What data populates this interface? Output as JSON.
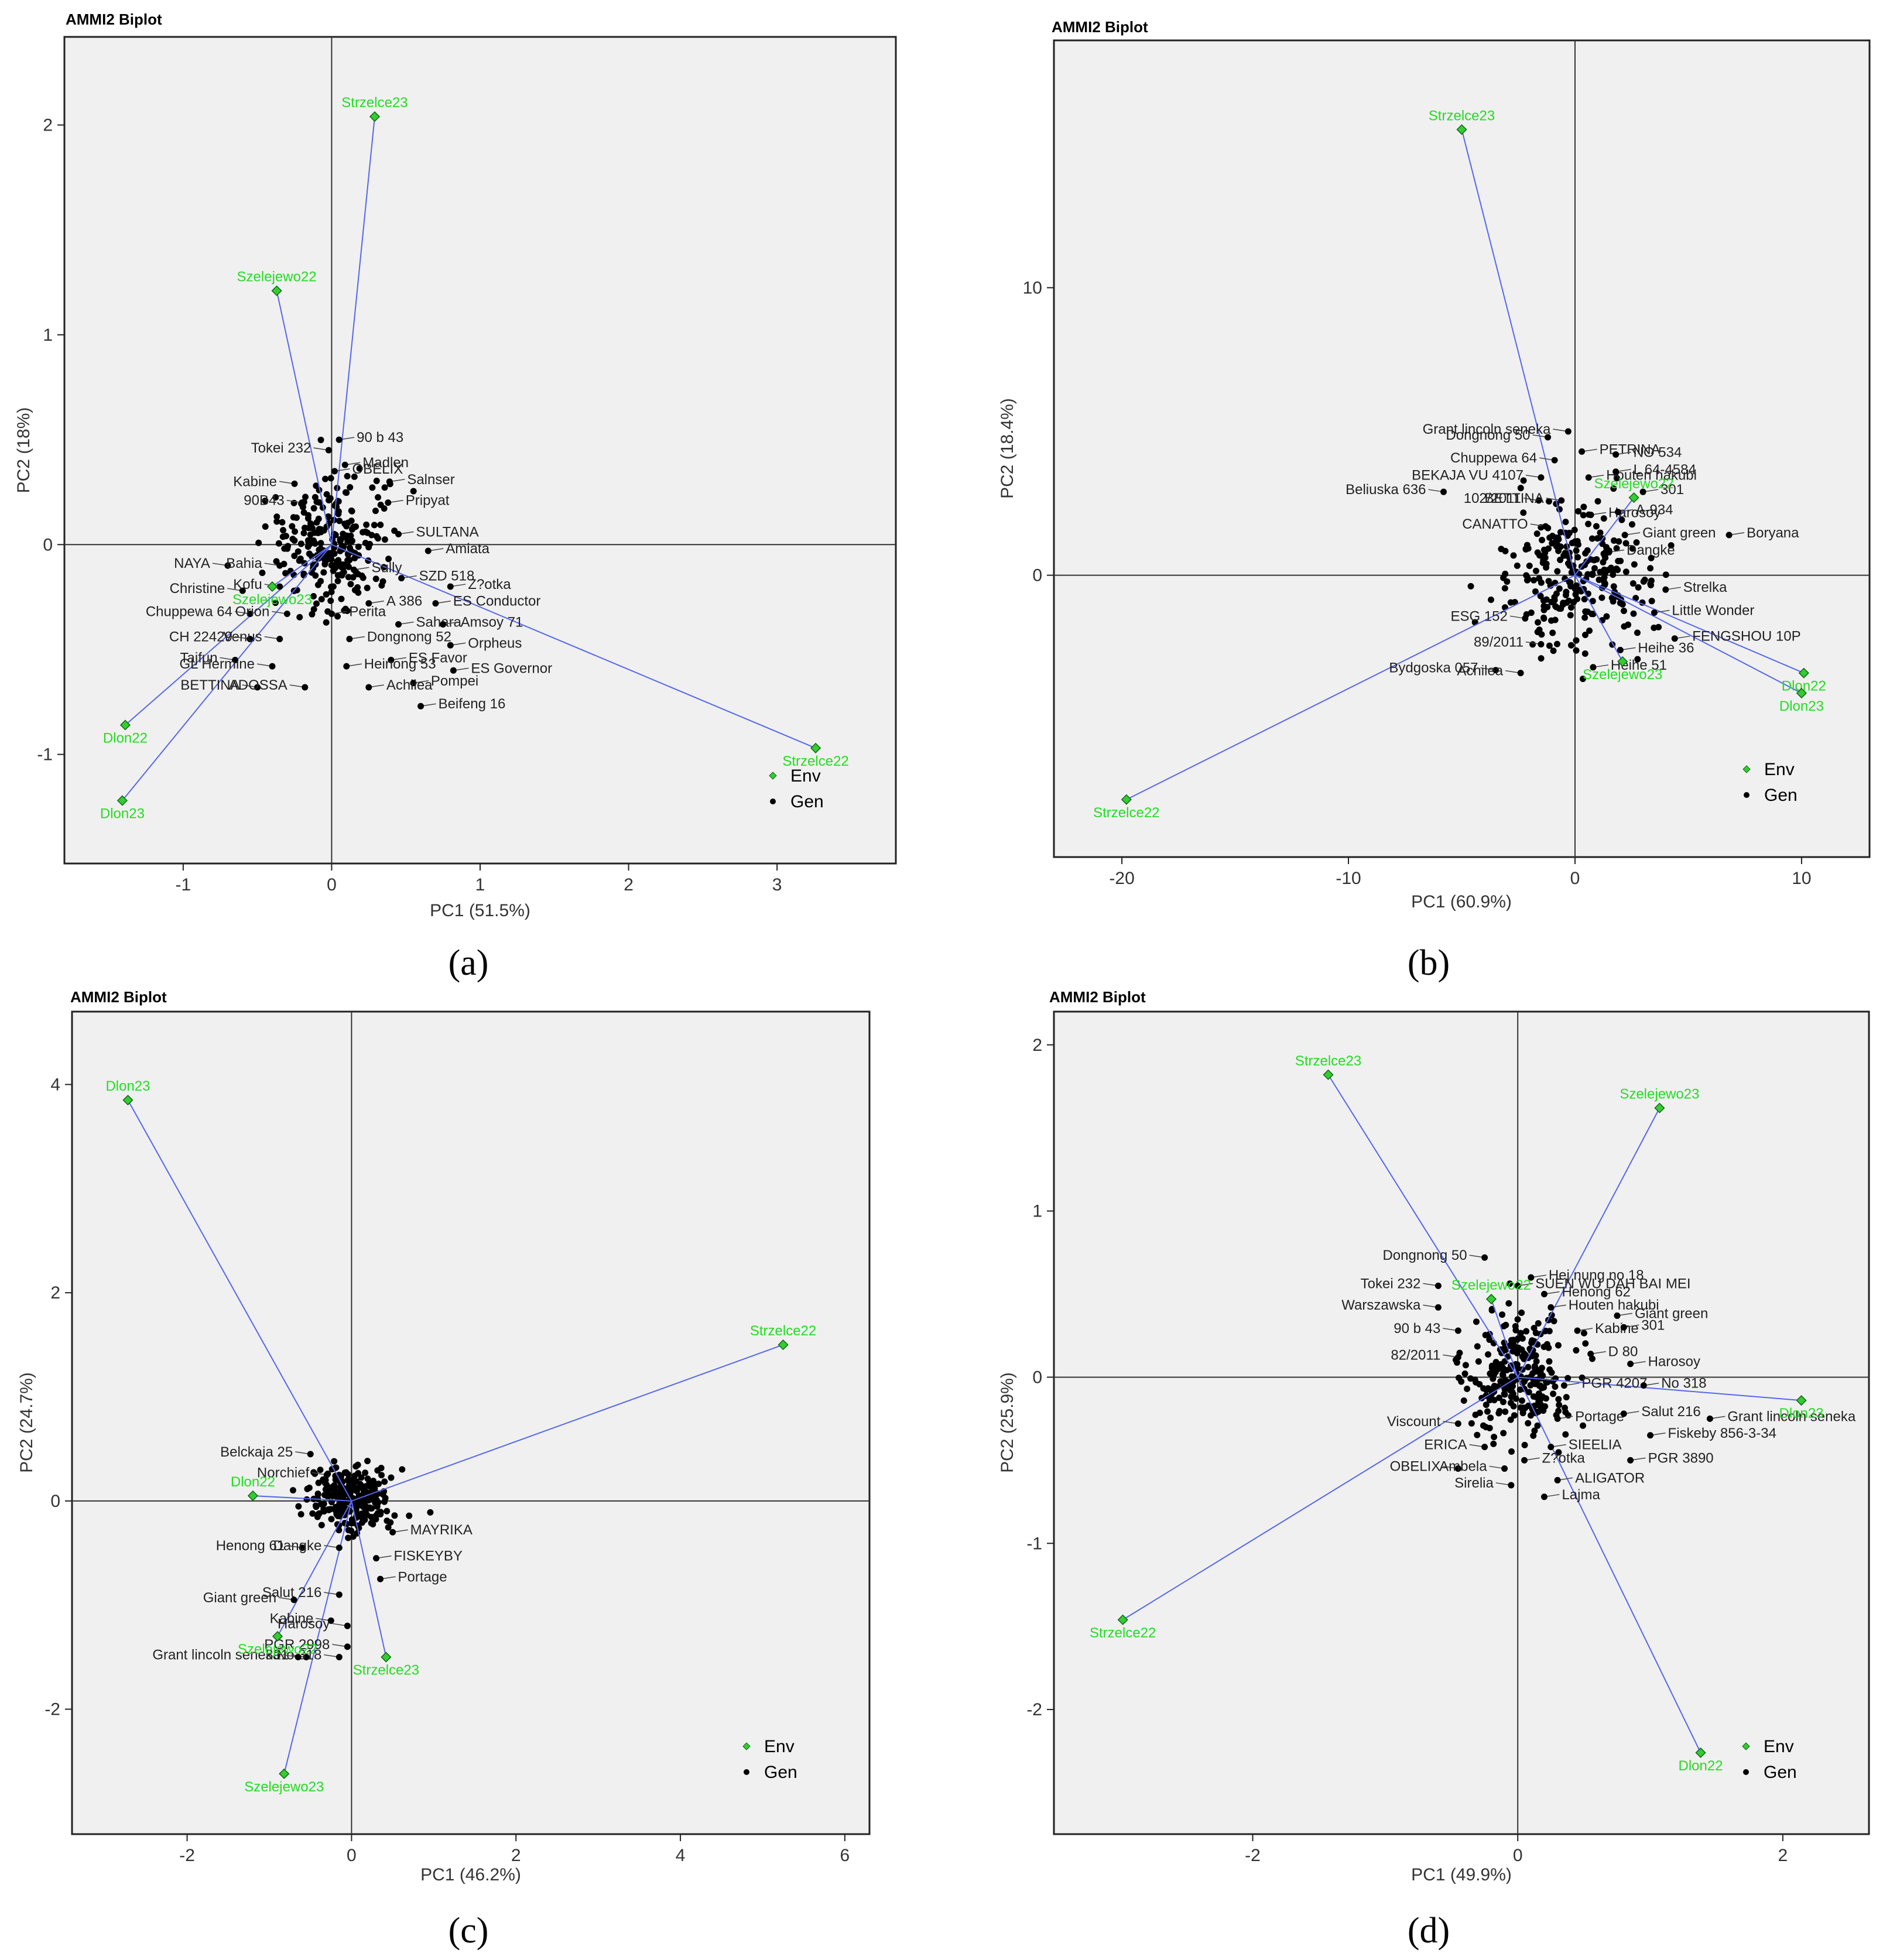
{
  "figure": {
    "panel_labels": [
      "(a)",
      "(b)",
      "(c)",
      "(d)"
    ],
    "colors": {
      "env": "#33cc33",
      "env_label": "#22dd22",
      "vector": "#5566ee",
      "gen": "#000000",
      "plot_bg": "#f0f0f0",
      "axis": "#222222"
    }
  },
  "chart_data": [
    {
      "id": "a",
      "type": "scatter",
      "title": "AMMI2 Biplot",
      "xlabel": "PC1 (51.5%)",
      "ylabel": "PC2 (18%)",
      "xlim": [
        -1.8,
        3.8
      ],
      "ylim": [
        -1.52,
        2.42
      ],
      "xticks": [
        -1,
        0,
        1,
        2,
        3
      ],
      "yticks": [
        -1,
        0,
        1,
        2
      ],
      "legend": {
        "position": "bottom-right",
        "entries": [
          "Env",
          "Gen"
        ]
      },
      "env": [
        {
          "name": "Strzelce23",
          "x": 0.29,
          "y": 2.04
        },
        {
          "name": "Szelejewo22",
          "x": -0.37,
          "y": 1.21
        },
        {
          "name": "Strzelce22",
          "x": 3.26,
          "y": -0.97
        },
        {
          "name": "Dlon22",
          "x": -1.39,
          "y": -0.86
        },
        {
          "name": "Dlon23",
          "x": -1.41,
          "y": -1.22
        },
        {
          "name": "Szelejewo23",
          "x": -0.4,
          "y": -0.2
        }
      ],
      "gen_labels": [
        {
          "name": "Tokei 232",
          "x": -0.02,
          "y": 0.45
        },
        {
          "name": "90 b 43",
          "x": 0.05,
          "y": 0.5
        },
        {
          "name": "OBELIX",
          "x": 0.02,
          "y": 0.35
        },
        {
          "name": "Madlen",
          "x": 0.09,
          "y": 0.38
        },
        {
          "name": "Kabine",
          "x": -0.25,
          "y": 0.29
        },
        {
          "name": "Salnser",
          "x": 0.39,
          "y": 0.3
        },
        {
          "name": "90B43",
          "x": -0.2,
          "y": 0.2
        },
        {
          "name": "Pripyat",
          "x": 0.38,
          "y": 0.2
        },
        {
          "name": "SULTANA",
          "x": 0.45,
          "y": 0.05
        },
        {
          "name": "Amiata",
          "x": 0.65,
          "y": -0.03
        },
        {
          "name": "NAYA",
          "x": -0.7,
          "y": -0.1
        },
        {
          "name": "Bahia",
          "x": -0.35,
          "y": -0.1
        },
        {
          "name": "Sully",
          "x": 0.15,
          "y": -0.12
        },
        {
          "name": "SZD 518",
          "x": 0.47,
          "y": -0.16
        },
        {
          "name": "Z?otka",
          "x": 0.8,
          "y": -0.2
        },
        {
          "name": "Christine",
          "x": -0.6,
          "y": -0.22
        },
        {
          "name": "Kofu",
          "x": -0.35,
          "y": -0.2
        },
        {
          "name": "A 386",
          "x": 0.25,
          "y": -0.28
        },
        {
          "name": "ES Conductor",
          "x": 0.7,
          "y": -0.28
        },
        {
          "name": "Chuppewa 64",
          "x": -0.55,
          "y": -0.33
        },
        {
          "name": "Orion",
          "x": -0.3,
          "y": -0.33
        },
        {
          "name": "Perita",
          "x": 0.0,
          "y": -0.33
        },
        {
          "name": "Sahara",
          "x": 0.45,
          "y": -0.38
        },
        {
          "name": "Amsoy 71",
          "x": 0.75,
          "y": -0.38
        },
        {
          "name": "CH 22429",
          "x": -0.55,
          "y": -0.45
        },
        {
          "name": "Venus",
          "x": -0.35,
          "y": -0.45
        },
        {
          "name": "Dongnong 52",
          "x": 0.12,
          "y": -0.45
        },
        {
          "name": "Orpheus",
          "x": 0.8,
          "y": -0.48
        },
        {
          "name": "Tajfun",
          "x": -0.65,
          "y": -0.55
        },
        {
          "name": "ES Favor",
          "x": 0.4,
          "y": -0.55
        },
        {
          "name": "GL Hermine",
          "x": -0.4,
          "y": -0.58
        },
        {
          "name": "Heinong 53",
          "x": 0.1,
          "y": -0.58
        },
        {
          "name": "ES Governor",
          "x": 0.82,
          "y": -0.6
        },
        {
          "name": "Pompei",
          "x": 0.55,
          "y": -0.66
        },
        {
          "name": "BETTINA",
          "x": -0.5,
          "y": -0.68
        },
        {
          "name": "ADOSSA",
          "x": -0.18,
          "y": -0.68
        },
        {
          "name": "Achilea",
          "x": 0.25,
          "y": -0.68
        },
        {
          "name": "Beifeng 16",
          "x": 0.6,
          "y": -0.77
        }
      ]
    },
    {
      "id": "b",
      "type": "scatter",
      "title": "AMMI2 Biplot",
      "xlabel": "PC1 (60.9%)",
      "ylabel": "PC2 (18.4%)",
      "xlim": [
        -23,
        13
      ],
      "ylim": [
        -9.8,
        18.6
      ],
      "xticks": [
        -20,
        -10,
        0,
        10
      ],
      "yticks": [
        0,
        10
      ],
      "legend": {
        "position": "bottom-right",
        "entries": [
          "Env",
          "Gen"
        ]
      },
      "env": [
        {
          "name": "Strzelce23",
          "x": -5.0,
          "y": 15.5
        },
        {
          "name": "Szelejewo22",
          "x": 2.6,
          "y": 2.7
        },
        {
          "name": "Dlon22",
          "x": 10.1,
          "y": -3.4
        },
        {
          "name": "Dlon23",
          "x": 10.0,
          "y": -4.1
        },
        {
          "name": "Szelejewo23",
          "x": 2.1,
          "y": -3.0
        },
        {
          "name": "Strzelce22",
          "x": -19.8,
          "y": -7.8
        }
      ],
      "gen_labels": [
        {
          "name": "Dongnong 50",
          "x": -1.2,
          "y": 4.8
        },
        {
          "name": "Grant lincoln seneka",
          "x": -0.3,
          "y": 5.0
        },
        {
          "name": "Chuppewa 64",
          "x": -0.9,
          "y": 4.0
        },
        {
          "name": "PETRINA",
          "x": 0.3,
          "y": 4.3
        },
        {
          "name": "NO 534",
          "x": 1.8,
          "y": 4.2
        },
        {
          "name": "BEKAJA VU 4107",
          "x": -1.5,
          "y": 3.4
        },
        {
          "name": "Houten hakubi",
          "x": 0.6,
          "y": 3.4
        },
        {
          "name": "L 64-4584",
          "x": 1.8,
          "y": 3.6
        },
        {
          "name": "301",
          "x": 3.0,
          "y": 2.9
        },
        {
          "name": "Beliuska 636",
          "x": -5.8,
          "y": 2.9
        },
        {
          "name": "102/2011",
          "x": -1.6,
          "y": 2.6
        },
        {
          "name": "BETTINA",
          "x": -0.6,
          "y": 2.6
        },
        {
          "name": "Harosoy",
          "x": 0.7,
          "y": 2.1
        },
        {
          "name": "A-934",
          "x": 1.9,
          "y": 2.2
        },
        {
          "name": "CANATTO",
          "x": -1.3,
          "y": 1.7
        },
        {
          "name": "Giant green",
          "x": 2.2,
          "y": 1.4
        },
        {
          "name": "Boryana",
          "x": 6.8,
          "y": 1.4
        },
        {
          "name": "Dangke",
          "x": 1.5,
          "y": 0.8
        },
        {
          "name": "Strelka",
          "x": 4.0,
          "y": -0.5
        },
        {
          "name": "Little Wonder",
          "x": 3.5,
          "y": -1.3
        },
        {
          "name": "ESG 152",
          "x": -2.2,
          "y": -1.5
        },
        {
          "name": "FENGSHOU 10P",
          "x": 4.4,
          "y": -2.2
        },
        {
          "name": "89/2011",
          "x": -1.5,
          "y": -2.4
        },
        {
          "name": "Heihe 36",
          "x": 2.0,
          "y": -2.6
        },
        {
          "name": "Bydgoska 057",
          "x": -3.5,
          "y": -3.3
        },
        {
          "name": "Heihe 51",
          "x": 0.8,
          "y": -3.2
        },
        {
          "name": "Achilea",
          "x": -2.4,
          "y": -3.4
        }
      ]
    },
    {
      "id": "c",
      "type": "scatter",
      "title": "AMMI2 Biplot",
      "xlabel": "PC1 (46.2%)",
      "ylabel": "PC2 (24.7%)",
      "xlim": [
        -3.4,
        6.3
      ],
      "ylim": [
        -3.2,
        4.7
      ],
      "xticks": [
        -2,
        0,
        2,
        4,
        6
      ],
      "yticks": [
        -2,
        0,
        2,
        4
      ],
      "legend": {
        "position": "bottom-right",
        "entries": [
          "Env",
          "Gen"
        ]
      },
      "env": [
        {
          "name": "Dlon23",
          "x": -2.72,
          "y": 3.85
        },
        {
          "name": "Strzelce22",
          "x": 5.25,
          "y": 1.5
        },
        {
          "name": "Dlon22",
          "x": -1.2,
          "y": 0.05
        },
        {
          "name": "Szelejewo22",
          "x": -0.9,
          "y": -1.3
        },
        {
          "name": "Strzelce23",
          "x": 0.42,
          "y": -1.5
        },
        {
          "name": "Szelejewo23",
          "x": -0.82,
          "y": -2.62
        }
      ],
      "gen_labels": [
        {
          "name": "Norchief",
          "x": -0.3,
          "y": 0.25
        },
        {
          "name": "Belckaja 25",
          "x": -0.5,
          "y": 0.45
        },
        {
          "name": "MAYRIKA",
          "x": 0.5,
          "y": -0.3
        },
        {
          "name": "Henong 61",
          "x": -0.6,
          "y": -0.45
        },
        {
          "name": "Dangke",
          "x": -0.15,
          "y": -0.45
        },
        {
          "name": "FISKEYBY",
          "x": 0.3,
          "y": -0.55
        },
        {
          "name": "Portage",
          "x": 0.35,
          "y": -0.75
        },
        {
          "name": "Giant green",
          "x": -0.7,
          "y": -0.95
        },
        {
          "name": "Salut 216",
          "x": -0.15,
          "y": -0.9
        },
        {
          "name": "Kabine",
          "x": -0.25,
          "y": -1.15
        },
        {
          "name": "Harosoy",
          "x": -0.05,
          "y": -1.2
        },
        {
          "name": "PGR 2998",
          "x": -0.05,
          "y": -1.4
        },
        {
          "name": "301",
          "x": -0.55,
          "y": -1.5
        },
        {
          "name": "No 318",
          "x": -0.15,
          "y": -1.5
        },
        {
          "name": "Grant lincoln seneka",
          "x": -0.65,
          "y": -1.5
        }
      ]
    },
    {
      "id": "d",
      "type": "scatter",
      "title": "AMMI2 Biplot",
      "xlabel": "PC1 (49.9%)",
      "ylabel": "PC2 (25.9%)",
      "xlim": [
        -3.5,
        2.65
      ],
      "ylim": [
        -2.75,
        2.2
      ],
      "xticks": [
        -2,
        0,
        2
      ],
      "yticks": [
        -2,
        -1,
        0,
        1,
        2
      ],
      "legend": {
        "position": "bottom-right",
        "entries": [
          "Env",
          "Gen"
        ]
      },
      "env": [
        {
          "name": "Strzelce23",
          "x": -1.43,
          "y": 1.82
        },
        {
          "name": "Szelejewo23",
          "x": 1.07,
          "y": 1.62
        },
        {
          "name": "Szelejewo22",
          "x": -0.2,
          "y": 0.47
        },
        {
          "name": "Dlon23",
          "x": 2.14,
          "y": -0.14
        },
        {
          "name": "Strzelce22",
          "x": -2.98,
          "y": -1.46
        },
        {
          "name": "Dlon22",
          "x": 1.38,
          "y": -2.26
        }
      ],
      "gen_labels": [
        {
          "name": "Dongnong 50",
          "x": -0.25,
          "y": 0.72
        },
        {
          "name": "Hej nung no 18",
          "x": 0.1,
          "y": 0.6
        },
        {
          "name": "Tokei 232",
          "x": -0.6,
          "y": 0.55
        },
        {
          "name": "SUEN WU DAH BAI MEI",
          "x": 0.0,
          "y": 0.55
        },
        {
          "name": "Henong 62",
          "x": 0.2,
          "y": 0.5
        },
        {
          "name": "Warszawska",
          "x": -0.6,
          "y": 0.42
        },
        {
          "name": "Houten hakubi",
          "x": 0.25,
          "y": 0.42
        },
        {
          "name": "Giant green",
          "x": 0.75,
          "y": 0.37
        },
        {
          "name": "90 b 43",
          "x": -0.45,
          "y": 0.28
        },
        {
          "name": "Kabine",
          "x": 0.45,
          "y": 0.28
        },
        {
          "name": "301",
          "x": 0.8,
          "y": 0.3
        },
        {
          "name": "D 80",
          "x": 0.55,
          "y": 0.14
        },
        {
          "name": "82/2011",
          "x": -0.45,
          "y": 0.12
        },
        {
          "name": "Harosoy",
          "x": 0.85,
          "y": 0.08
        },
        {
          "name": "PGR 4207",
          "x": 0.35,
          "y": -0.05
        },
        {
          "name": "No 318",
          "x": 0.95,
          "y": -0.05
        },
        {
          "name": "Viscount",
          "x": -0.45,
          "y": -0.28
        },
        {
          "name": "Portage",
          "x": 0.3,
          "y": -0.25
        },
        {
          "name": "Salut 216",
          "x": 0.8,
          "y": -0.22
        },
        {
          "name": "Grant lincoln seneka",
          "x": 1.45,
          "y": -0.25
        },
        {
          "name": "Fiskeby 856-3-34",
          "x": 1.0,
          "y": -0.35
        },
        {
          "name": "ERICA",
          "x": -0.25,
          "y": -0.42
        },
        {
          "name": "SIEELIA",
          "x": 0.25,
          "y": -0.42
        },
        {
          "name": "Z?otka",
          "x": 0.05,
          "y": -0.5
        },
        {
          "name": "OBELIX",
          "x": -0.45,
          "y": -0.55
        },
        {
          "name": "Ambela",
          "x": -0.1,
          "y": -0.55
        },
        {
          "name": "PGR 3890",
          "x": 0.85,
          "y": -0.5
        },
        {
          "name": "ALIGATOR",
          "x": 0.3,
          "y": -0.62
        },
        {
          "name": "Sirelia",
          "x": -0.05,
          "y": -0.65
        },
        {
          "name": "Lajma",
          "x": 0.2,
          "y": -0.72
        }
      ]
    }
  ]
}
